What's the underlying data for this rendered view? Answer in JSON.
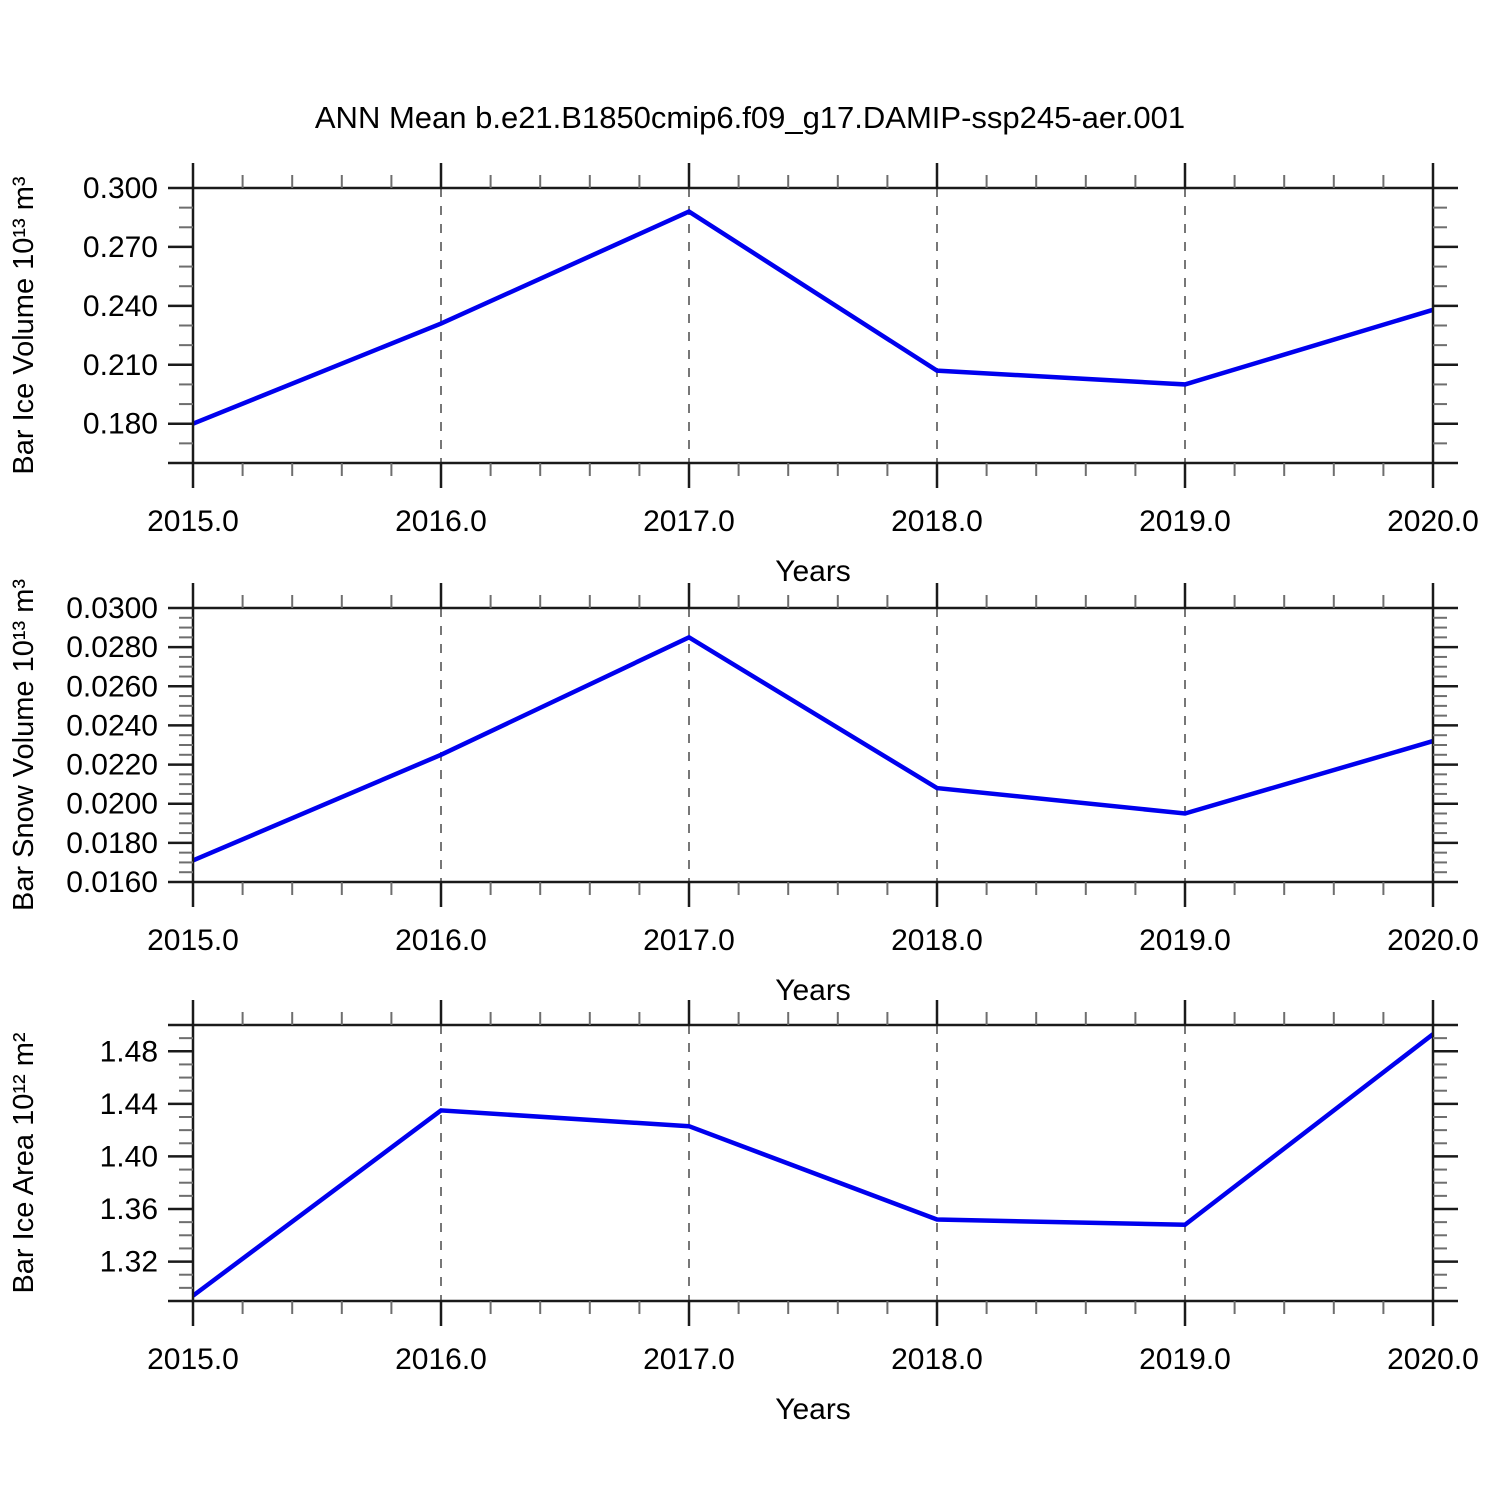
{
  "header": {
    "title": "ANN Mean b.e21.B1850cmip6.f09_g17.DAMIP-ssp245-aer.001"
  },
  "colors": {
    "line": "#0000EE",
    "axis": "#1a1a1a",
    "minor_tick": "#6e6e6e",
    "gridline": "#777777",
    "text": "#000000"
  },
  "chart_data": [
    {
      "type": "line",
      "panel": "bar-ice-volume",
      "ylabel": "Bar Ice Volume 10¹³ m³",
      "xlabel": "Years",
      "x": [
        2015.0,
        2016.0,
        2017.0,
        2018.0,
        2019.0,
        2020.0
      ],
      "y": [
        0.18,
        0.231,
        0.288,
        0.207,
        0.2,
        0.238
      ],
      "xlim": [
        2015.0,
        2020.0
      ],
      "ylim": [
        0.16,
        0.3
      ],
      "xtick_values": [
        2015.0,
        2016.0,
        2017.0,
        2018.0,
        2019.0,
        2020.0
      ],
      "xtick_labels": [
        "2015.0",
        "2016.0",
        "2017.0",
        "2018.0",
        "2019.0",
        "2020.0"
      ],
      "xminor_step": 0.2,
      "ytick_values": [
        0.3,
        0.27,
        0.24,
        0.21,
        0.18
      ],
      "ytick_labels": [
        "0.300",
        "0.270",
        "0.240",
        "0.210",
        "0.180"
      ],
      "yminor_step": 0.01,
      "gridlines_x": [
        2016.0,
        2017.0,
        2018.0,
        2019.0
      ],
      "grid": "vertical-dashed",
      "legend": "none"
    },
    {
      "type": "line",
      "panel": "bar-snow-volume",
      "ylabel": "Bar Snow Volume 10¹³ m³",
      "xlabel": "Years",
      "x": [
        2015.0,
        2016.0,
        2017.0,
        2018.0,
        2019.0,
        2020.0
      ],
      "y": [
        0.0171,
        0.0225,
        0.0285,
        0.0208,
        0.0195,
        0.0232
      ],
      "xlim": [
        2015.0,
        2020.0
      ],
      "ylim": [
        0.016,
        0.03
      ],
      "xtick_values": [
        2015.0,
        2016.0,
        2017.0,
        2018.0,
        2019.0,
        2020.0
      ],
      "xtick_labels": [
        "2015.0",
        "2016.0",
        "2017.0",
        "2018.0",
        "2019.0",
        "2020.0"
      ],
      "xminor_step": 0.2,
      "ytick_values": [
        0.03,
        0.028,
        0.026,
        0.024,
        0.022,
        0.02,
        0.018,
        0.016
      ],
      "ytick_labels": [
        "0.0300",
        "0.0280",
        "0.0260",
        "0.0240",
        "0.0220",
        "0.0200",
        "0.0180",
        "0.0160"
      ],
      "yminor_step": 0.0005,
      "gridlines_x": [
        2016.0,
        2017.0,
        2018.0,
        2019.0
      ],
      "grid": "vertical-dashed",
      "legend": "none"
    },
    {
      "type": "line",
      "panel": "bar-ice-area",
      "ylabel": "Bar Ice Area 10¹² m²",
      "xlabel": "Years",
      "x": [
        2015.0,
        2016.0,
        2017.0,
        2018.0,
        2019.0,
        2020.0
      ],
      "y": [
        1.294,
        1.435,
        1.423,
        1.352,
        1.348,
        1.493
      ],
      "xlim": [
        2015.0,
        2020.0
      ],
      "ylim": [
        1.29,
        1.5
      ],
      "xtick_values": [
        2015.0,
        2016.0,
        2017.0,
        2018.0,
        2019.0,
        2020.0
      ],
      "xtick_labels": [
        "2015.0",
        "2016.0",
        "2017.0",
        "2018.0",
        "2019.0",
        "2020.0"
      ],
      "xminor_step": 0.2,
      "ytick_values": [
        1.48,
        1.44,
        1.4,
        1.36,
        1.32
      ],
      "ytick_labels": [
        "1.48",
        "1.44",
        "1.40",
        "1.36",
        "1.32"
      ],
      "yminor_step": 0.01,
      "gridlines_x": [
        2016.0,
        2017.0,
        2018.0,
        2019.0
      ],
      "grid": "vertical-dashed",
      "legend": "none"
    }
  ]
}
